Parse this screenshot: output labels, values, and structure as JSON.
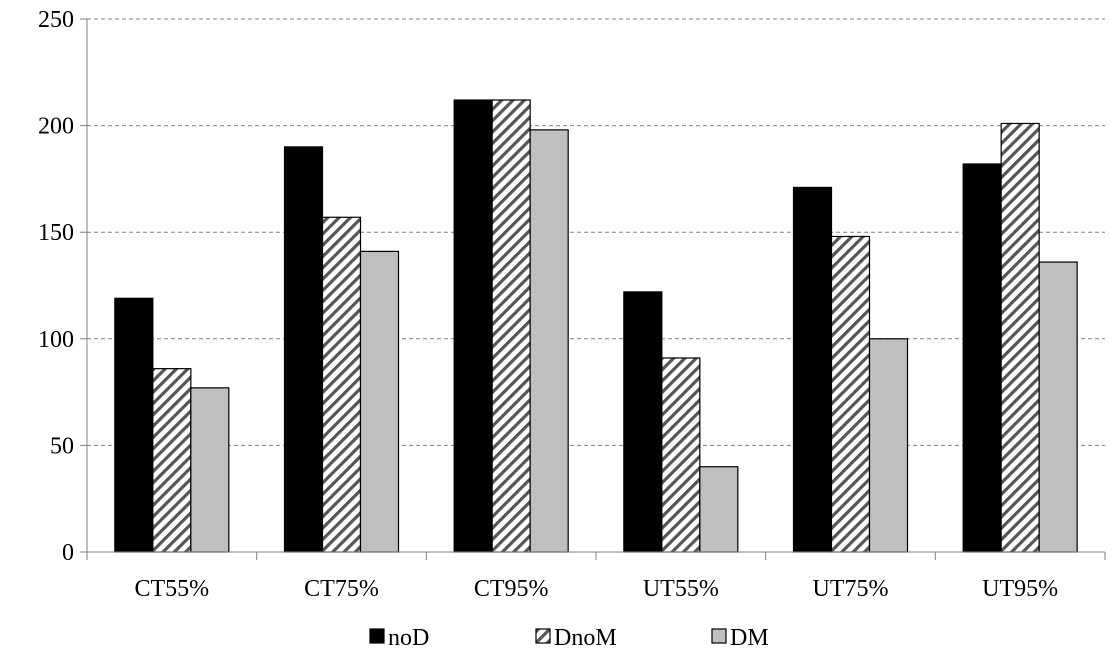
{
  "chart_data": {
    "type": "bar",
    "title": "",
    "xlabel": "",
    "ylabel": "",
    "ylim": [
      0,
      250
    ],
    "yticks": [
      0,
      50,
      100,
      150,
      200,
      250
    ],
    "grid": "horizontal dashed",
    "legend_position": "bottom",
    "categories": [
      "CT55%",
      "CT75%",
      "CT95%",
      "UT55%",
      "UT75%",
      "UT95%"
    ],
    "series": [
      {
        "name": "noD",
        "color": "#000000",
        "pattern": "solid",
        "values": [
          119,
          190,
          212,
          122,
          171,
          182
        ]
      },
      {
        "name": "DnoM",
        "color": "#ffffff",
        "pattern": "diagonal-hatch",
        "values": [
          86,
          157,
          212,
          91,
          148,
          201
        ]
      },
      {
        "name": "DM",
        "color": "#bfbfbf",
        "pattern": "solid",
        "values": [
          77,
          141,
          198,
          40,
          100,
          136
        ]
      }
    ]
  }
}
